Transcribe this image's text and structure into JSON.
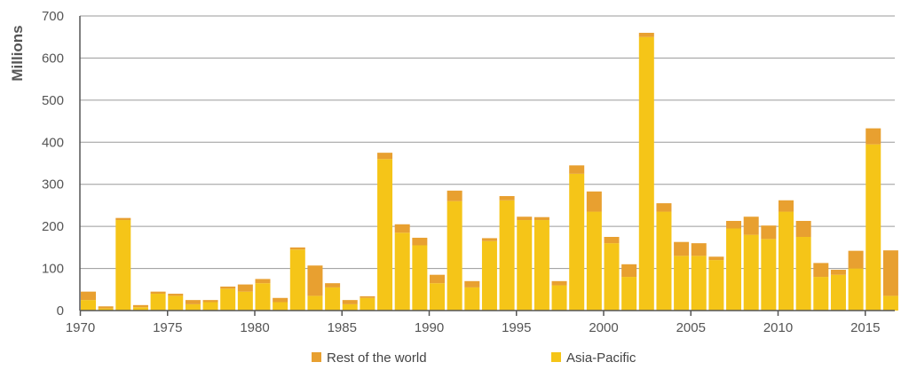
{
  "chart_data": {
    "type": "bar",
    "stacked": true,
    "title": "",
    "xlabel": "",
    "ylabel": "Millions",
    "ylim": [
      0,
      700
    ],
    "yticks": [
      0,
      100,
      200,
      300,
      400,
      500,
      600,
      700
    ],
    "xticks": [
      1970,
      1975,
      1980,
      1985,
      1990,
      1995,
      2000,
      2005,
      2010,
      2015
    ],
    "grid": true,
    "legend": "bottom",
    "categories": [
      1970,
      1971,
      1972,
      1973,
      1974,
      1975,
      1976,
      1977,
      1978,
      1979,
      1980,
      1981,
      1982,
      1983,
      1984,
      1985,
      1986,
      1987,
      1988,
      1989,
      1990,
      1991,
      1992,
      1993,
      1994,
      1995,
      1996,
      1997,
      1998,
      1999,
      2000,
      2001,
      2002,
      2003,
      2004,
      2005,
      2006,
      2007,
      2008,
      2009,
      2010,
      2011,
      2012,
      2013,
      2014,
      2015,
      2016
    ],
    "series": [
      {
        "name": "Asia-Pacific",
        "color": "#F5C518",
        "values": [
          25,
          5,
          215,
          8,
          40,
          35,
          15,
          20,
          52,
          45,
          65,
          20,
          145,
          35,
          55,
          15,
          30,
          360,
          185,
          155,
          65,
          260,
          55,
          165,
          262,
          215,
          215,
          60,
          325,
          235,
          160,
          80,
          650,
          235,
          130,
          130,
          120,
          195,
          180,
          170,
          235,
          175,
          80,
          85,
          100,
          395,
          35
        ]
      },
      {
        "name": "Rest of the world",
        "color": "#E8A030",
        "values": [
          20,
          5,
          5,
          5,
          5,
          5,
          10,
          5,
          5,
          17,
          10,
          10,
          5,
          72,
          10,
          10,
          4,
          15,
          20,
          18,
          20,
          25,
          15,
          7,
          10,
          8,
          7,
          10,
          20,
          48,
          15,
          30,
          10,
          20,
          33,
          30,
          8,
          18,
          43,
          32,
          27,
          38,
          33,
          12,
          42,
          38,
          108
        ]
      }
    ]
  }
}
